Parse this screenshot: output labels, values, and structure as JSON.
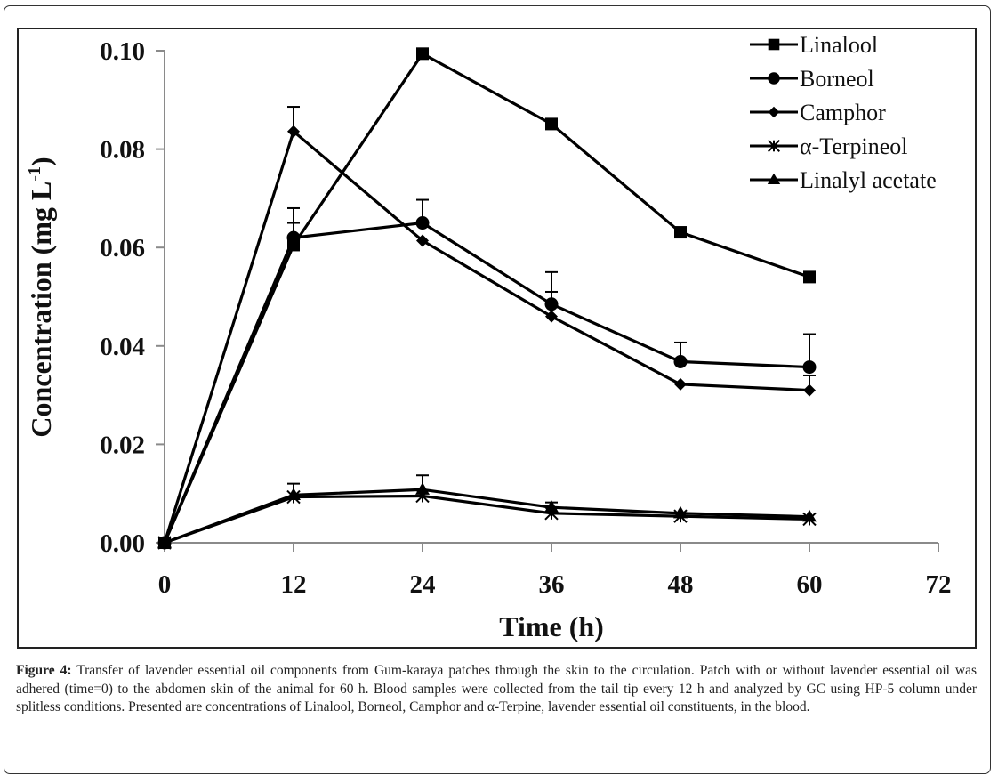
{
  "chart_data": {
    "type": "line",
    "title": "",
    "xlabel": "Time (h)",
    "ylabel": "Concentration (mg L-1)",
    "ylabel_main": "Concentration (mg L",
    "ylabel_sup": "-1",
    "ylabel_close": ")",
    "xlim": [
      0,
      72
    ],
    "ylim": [
      0,
      0.1
    ],
    "xticks": [
      0,
      12,
      24,
      36,
      48,
      60,
      72
    ],
    "xtick_labels": [
      "0",
      "12",
      "24",
      "36",
      "48",
      "60",
      "72"
    ],
    "yticks": [
      0,
      0.02,
      0.04,
      0.06,
      0.08,
      0.1
    ],
    "ytick_labels": [
      "0.00",
      "0.02",
      "0.04",
      "0.06",
      "0.08",
      "0.10"
    ],
    "grid": false,
    "legend_position": "top-right",
    "x": [
      0,
      12,
      24,
      36,
      48,
      60
    ],
    "series": [
      {
        "name": "Linalool",
        "marker": "square",
        "values": [
          0,
          0.0605,
          0.0994,
          0.0851,
          0.0631,
          0.054
        ],
        "error_upper": [
          null,
          0.065,
          null,
          null,
          null,
          null
        ]
      },
      {
        "name": "Borneol",
        "marker": "circle",
        "values": [
          0,
          0.062,
          0.065,
          0.0485,
          0.0368,
          0.0357
        ],
        "error_upper": [
          null,
          0.068,
          0.0697,
          0.055,
          0.0407,
          0.0424
        ]
      },
      {
        "name": "Camphor",
        "marker": "diamond",
        "values": [
          0,
          0.0836,
          0.0614,
          0.046,
          0.0322,
          0.031
        ],
        "error_upper": [
          null,
          0.0886,
          null,
          0.051,
          null,
          0.034
        ]
      },
      {
        "name": "α-Terpineol",
        "marker": "asterisk",
        "values": [
          0,
          0.0093,
          0.0095,
          0.006,
          0.0054,
          0.0048
        ],
        "error_upper": [
          null,
          null,
          null,
          null,
          null,
          null
        ]
      },
      {
        "name": "Linalyl acetate",
        "marker": "triangle",
        "values": [
          0,
          0.0097,
          0.0108,
          0.0072,
          0.006,
          0.0053
        ],
        "error_upper": [
          null,
          0.012,
          0.0137,
          0.0082,
          null,
          null
        ]
      }
    ]
  },
  "caption": {
    "label": "Figure 4:",
    "text": " Transfer of lavender essential oil components from Gum-karaya patches through the skin to the circulation. Patch with or without lavender essential oil was adhered (time=0) to the abdomen skin of the animal for 60 h. Blood samples were collected from the tail tip every 12 h and analyzed by GC using HP-5 column under splitless conditions. Presented are concentrations of Linalool, Borneol, Camphor and α-Terpine, lavender essential oil constituents, in the blood."
  }
}
